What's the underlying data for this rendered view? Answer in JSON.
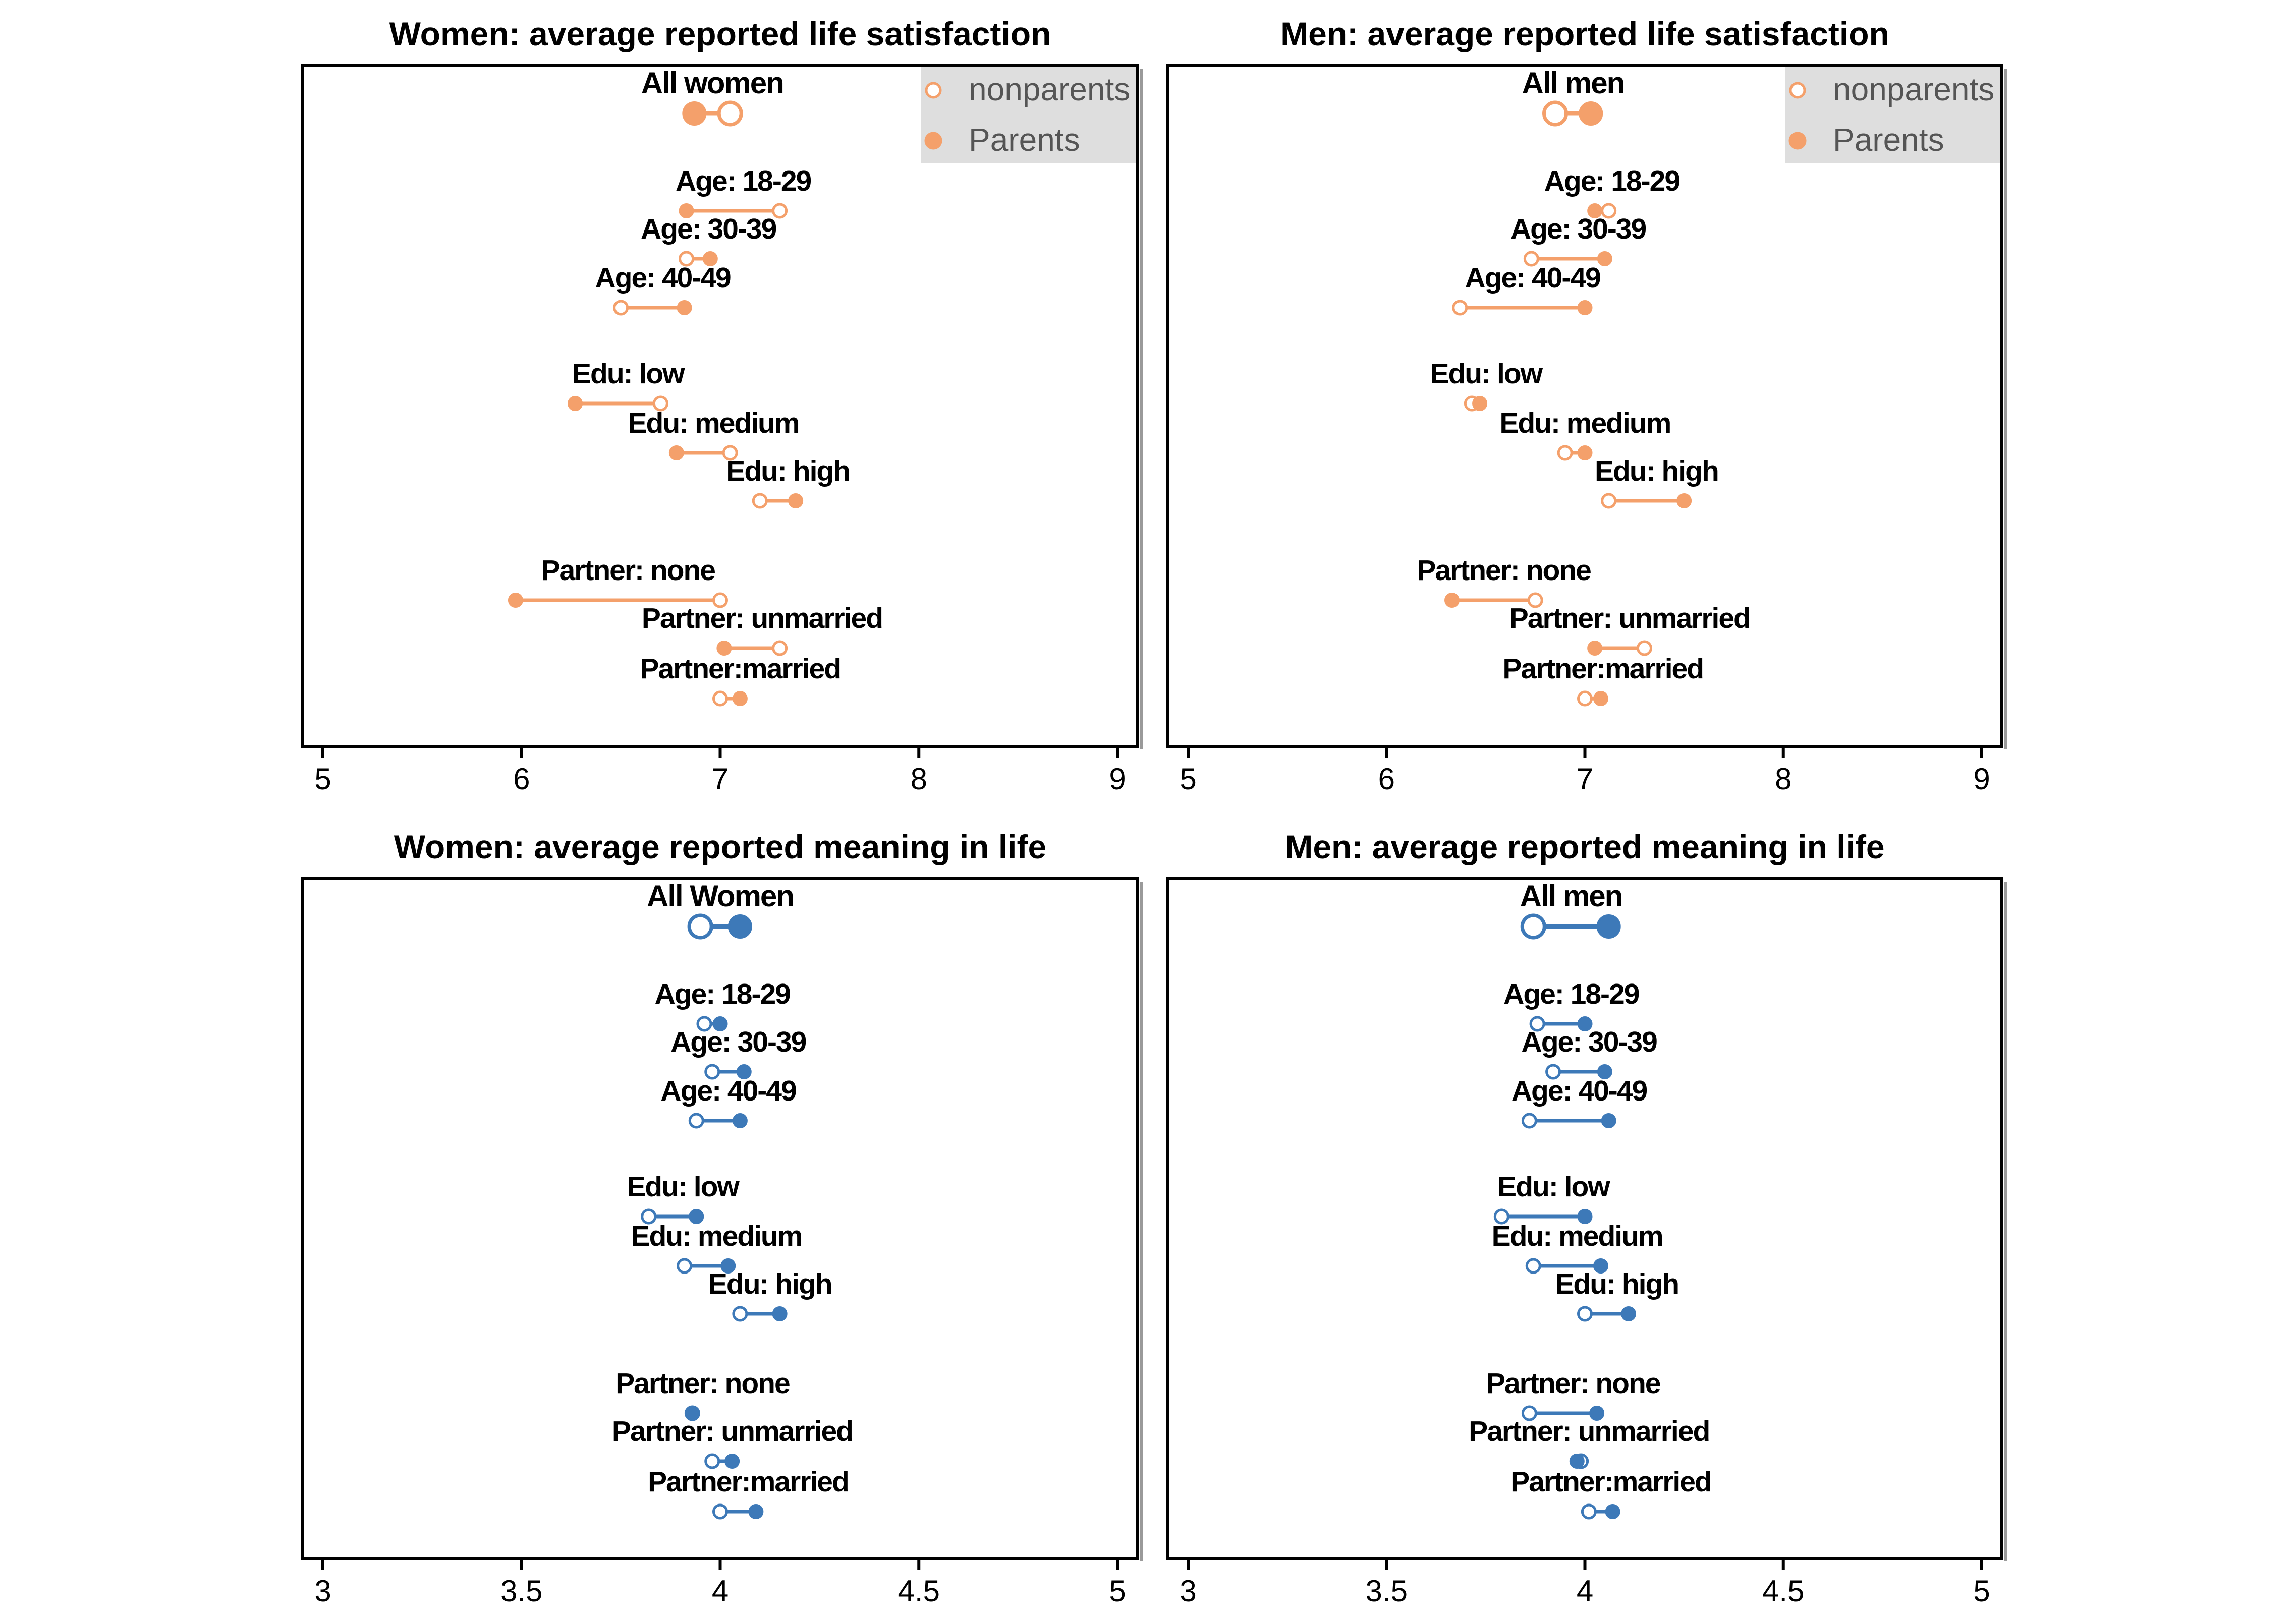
{
  "colors": {
    "satisfaction": "#F4A06B",
    "meaning": "#3D79B8",
    "legend_bg": "#DEDEDE"
  },
  "chart_data": [
    {
      "type": "dumbbell",
      "title": "Women: average reported life satisfaction",
      "measure": "satisfaction",
      "xlim": [
        5,
        9
      ],
      "xticks": [
        "5",
        "6",
        "7",
        "8",
        "9"
      ],
      "legend": {
        "position": "top-right",
        "entries": [
          "nonparents",
          "Parents"
        ]
      },
      "rows": [
        {
          "label": "All women",
          "nonparents": 7.05,
          "parents": 6.87,
          "summary": true
        },
        {
          "label": "Age: 18-29",
          "nonparents": 7.3,
          "parents": 6.83
        },
        {
          "label": "Age: 30-39",
          "nonparents": 6.83,
          "parents": 6.95
        },
        {
          "label": "Age: 40-49",
          "nonparents": 6.5,
          "parents": 6.82
        },
        {
          "label": "Edu: low",
          "nonparents": 6.7,
          "parents": 6.27
        },
        {
          "label": "Edu: medium",
          "nonparents": 7.05,
          "parents": 6.78
        },
        {
          "label": "Edu: high",
          "nonparents": 7.2,
          "parents": 7.38
        },
        {
          "label": "Partner: none",
          "nonparents": 7.0,
          "parents": 5.97
        },
        {
          "label": "Partner: unmarried",
          "nonparents": 7.3,
          "parents": 7.02
        },
        {
          "label": "Partner:married",
          "nonparents": 7.0,
          "parents": 7.1
        }
      ]
    },
    {
      "type": "dumbbell",
      "title": "Men: average reported life satisfaction",
      "measure": "satisfaction",
      "xlim": [
        5,
        9
      ],
      "xticks": [
        "5",
        "6",
        "7",
        "8",
        "9"
      ],
      "legend": {
        "position": "top-right",
        "entries": [
          "nonparents",
          "Parents"
        ]
      },
      "rows": [
        {
          "label": "All men",
          "nonparents": 6.85,
          "parents": 7.03,
          "summary": true
        },
        {
          "label": "Age: 18-29",
          "nonparents": 7.12,
          "parents": 7.05
        },
        {
          "label": "Age: 30-39",
          "nonparents": 6.73,
          "parents": 7.1
        },
        {
          "label": "Age: 40-49",
          "nonparents": 6.37,
          "parents": 7.0
        },
        {
          "label": "Edu: low",
          "nonparents": 6.43,
          "parents": 6.47
        },
        {
          "label": "Edu: medium",
          "nonparents": 6.9,
          "parents": 7.0
        },
        {
          "label": "Edu: high",
          "nonparents": 7.12,
          "parents": 7.5
        },
        {
          "label": "Partner: none",
          "nonparents": 6.75,
          "parents": 6.33
        },
        {
          "label": "Partner: unmarried",
          "nonparents": 7.3,
          "parents": 7.05
        },
        {
          "label": "Partner:married",
          "nonparents": 7.0,
          "parents": 7.08
        }
      ]
    },
    {
      "type": "dumbbell",
      "title": "Women: average reported meaning in life",
      "measure": "meaning",
      "xlim": [
        3,
        5
      ],
      "xticks": [
        "3",
        "3.5",
        "4",
        "4.5",
        "5"
      ],
      "rows": [
        {
          "label": "All Women",
          "nonparents": 3.95,
          "parents": 4.05,
          "summary": true
        },
        {
          "label": "Age: 18-29",
          "nonparents": 3.96,
          "parents": 4.0
        },
        {
          "label": "Age: 30-39",
          "nonparents": 3.98,
          "parents": 4.06
        },
        {
          "label": "Age: 40-49",
          "nonparents": 3.94,
          "parents": 4.05
        },
        {
          "label": "Edu: low",
          "nonparents": 3.82,
          "parents": 3.94
        },
        {
          "label": "Edu: medium",
          "nonparents": 3.91,
          "parents": 4.02
        },
        {
          "label": "Edu: high",
          "nonparents": 4.05,
          "parents": 4.15
        },
        {
          "label": "Partner: none",
          "nonparents": 3.93,
          "parents": 3.93
        },
        {
          "label": "Partner: unmarried",
          "nonparents": 3.98,
          "parents": 4.03
        },
        {
          "label": "Partner:married",
          "nonparents": 4.0,
          "parents": 4.09
        }
      ]
    },
    {
      "type": "dumbbell",
      "title": "Men: average reported meaning in life",
      "measure": "meaning",
      "xlim": [
        3,
        5
      ],
      "xticks": [
        "3",
        "3.5",
        "4",
        "4.5",
        "5"
      ],
      "rows": [
        {
          "label": "All men",
          "nonparents": 3.87,
          "parents": 4.06,
          "summary": true
        },
        {
          "label": "Age: 18-29",
          "nonparents": 3.88,
          "parents": 4.0
        },
        {
          "label": "Age: 30-39",
          "nonparents": 3.92,
          "parents": 4.05
        },
        {
          "label": "Age: 40-49",
          "nonparents": 3.86,
          "parents": 4.06
        },
        {
          "label": "Edu: low",
          "nonparents": 3.79,
          "parents": 4.0
        },
        {
          "label": "Edu: medium",
          "nonparents": 3.87,
          "parents": 4.04
        },
        {
          "label": "Edu: high",
          "nonparents": 4.0,
          "parents": 4.11
        },
        {
          "label": "Partner: none",
          "nonparents": 3.86,
          "parents": 4.03
        },
        {
          "label": "Partner: unmarried",
          "nonparents": 3.99,
          "parents": 3.98
        },
        {
          "label": "Partner:married",
          "nonparents": 4.01,
          "parents": 4.07
        }
      ]
    }
  ]
}
